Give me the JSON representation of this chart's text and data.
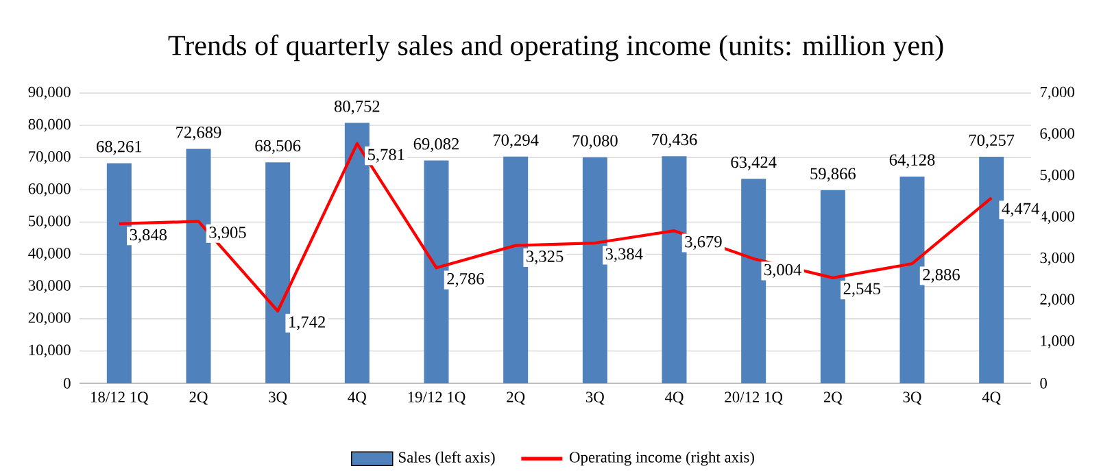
{
  "chart_data": {
    "type": "bar",
    "title": "Trends of quarterly sales and operating income (units: million yen)",
    "categories": [
      "18/12 1Q",
      "2Q",
      "3Q",
      "4Q",
      "19/12 1Q",
      "2Q",
      "3Q",
      "4Q",
      "20/12 1Q",
      "2Q",
      "3Q",
      "4Q"
    ],
    "series": [
      {
        "name": "Sales (left axis)",
        "color": "#4f81bd",
        "values": [
          68261,
          72689,
          68506,
          80752,
          69082,
          70294,
          70080,
          70436,
          63424,
          59866,
          64128,
          70257
        ],
        "value_labels": [
          "68,261",
          "72,689",
          "68,506",
          "80,752",
          "69,082",
          "70,294",
          "70,080",
          "70,436",
          "63,424",
          "59,866",
          "64,128",
          "70,257"
        ]
      },
      {
        "name": "Operating income (right axis)",
        "type": "line",
        "axis": "y2",
        "color": "#ff0000",
        "values": [
          3848,
          3905,
          1742,
          5781,
          2786,
          3325,
          3384,
          3679,
          3004,
          2545,
          2886,
          4474
        ],
        "value_labels": [
          "3,848",
          "3,905",
          "1,742",
          "5,781",
          "2,786",
          "3,325",
          "3,384",
          "3,679",
          "3,004",
          "2,545",
          "2,886",
          "4,474"
        ]
      }
    ],
    "ylim": [
      0,
      90000
    ],
    "yticks": [
      0,
      {
        "value": 10000,
        "label": "10,000"
      },
      {
        "value": 20000,
        "label": "20,000"
      },
      {
        "value": 30000,
        "label": "30,000"
      },
      {
        "value": 40000,
        "label": "40,000"
      },
      {
        "value": 50000,
        "label": "50,000"
      },
      {
        "value": 60000,
        "label": "60,000"
      },
      {
        "value": 70000,
        "label": "70,000"
      },
      {
        "value": 80000,
        "label": "80,000"
      },
      {
        "value": 90000,
        "label": "90,000"
      }
    ],
    "y2lim": [
      0,
      7000
    ],
    "y2ticks": [
      0,
      {
        "value": 1000,
        "label": "1,000"
      },
      {
        "value": 2000,
        "label": "2,000"
      },
      {
        "value": 3000,
        "label": "3,000"
      },
      {
        "value": 4000,
        "label": "4,000"
      },
      {
        "value": 5000,
        "label": "5,000"
      },
      {
        "value": 6000,
        "label": "6,000"
      },
      {
        "value": 7000,
        "label": "7,000"
      }
    ],
    "grid": "y",
    "legend": "bottom",
    "marker": "none",
    "line_style": "solid"
  }
}
